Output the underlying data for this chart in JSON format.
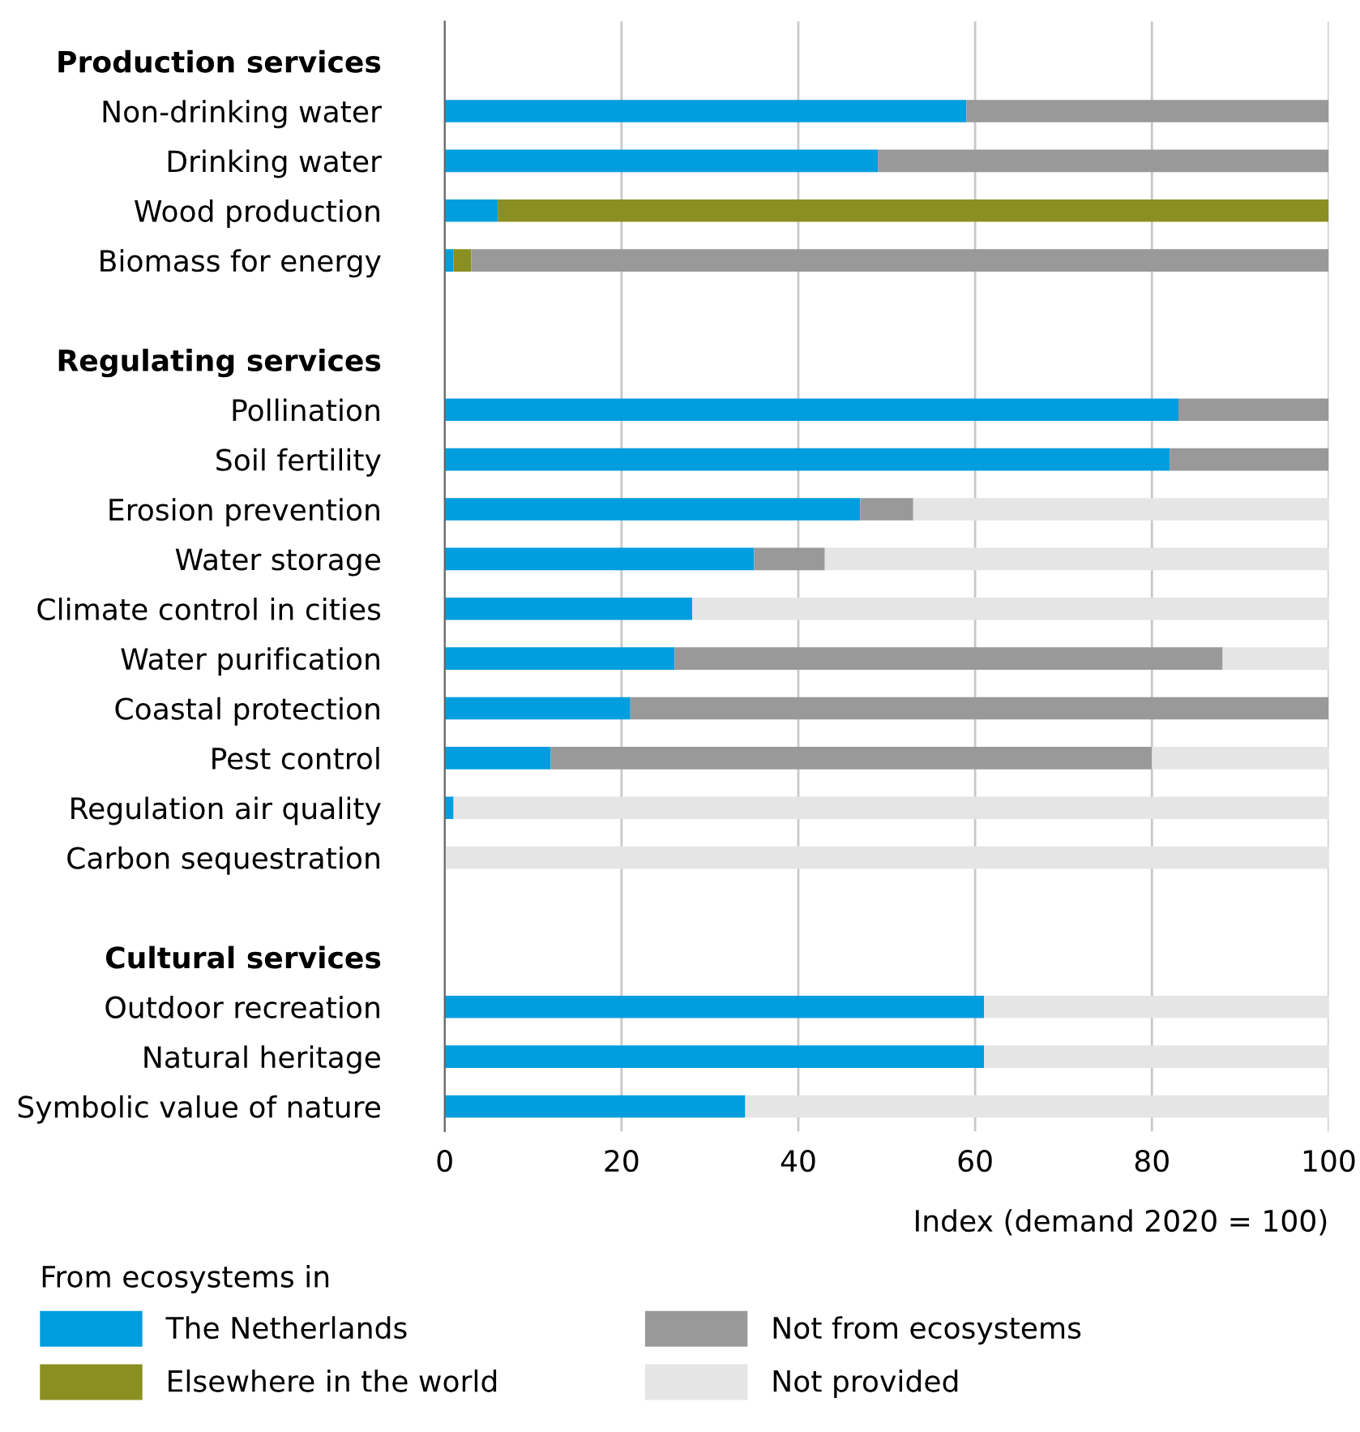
{
  "chart_data": {
    "type": "bar",
    "orientation": "horizontal",
    "stacked": true,
    "categories": [
      "Production services",
      "Non-drinking water",
      "Drinking water",
      "Wood production",
      "Biomass for energy",
      null,
      "Regulating services",
      "Pollination",
      "Soil fertility",
      "Erosion prevention",
      "Water storage",
      "Climate control in cities",
      "Water purification",
      "Coastal protection",
      "Pest control",
      "Regulation air quality",
      "Carbon sequestration",
      null,
      "Cultural services",
      "Outdoor recreation",
      "Natural heritage",
      "Symbolic value of nature"
    ],
    "series": [
      {
        "name": "The Netherlands",
        "color": "#009ddf",
        "values": [
          null,
          59,
          49,
          6,
          1,
          null,
          null,
          83,
          82,
          47,
          35,
          28,
          26,
          21,
          12,
          1,
          0,
          null,
          null,
          61,
          61,
          34
        ]
      },
      {
        "name": "Elsewhere in the world",
        "color": "#8a8f21",
        "values": [
          null,
          0,
          0,
          94,
          2,
          null,
          null,
          0,
          0,
          0,
          0,
          0,
          0,
          0,
          0,
          0,
          0,
          null,
          null,
          0,
          0,
          0
        ]
      },
      {
        "name": "Not from ecosystems",
        "color": "#999999",
        "values": [
          null,
          41,
          51,
          0,
          97,
          null,
          null,
          17,
          18,
          6,
          8,
          0,
          62,
          79,
          68,
          0,
          0,
          null,
          null,
          0,
          0,
          0
        ]
      },
      {
        "name": "Not provided",
        "color": "#e5e5e5",
        "values": [
          null,
          0,
          0,
          0,
          0,
          null,
          null,
          0,
          0,
          47,
          57,
          72,
          12,
          0,
          20,
          99,
          100,
          null,
          null,
          39,
          39,
          66
        ]
      }
    ],
    "xlim": [
      0,
      100
    ],
    "xticks": [
      0,
      20,
      40,
      60,
      80,
      100
    ],
    "xlabel": "Index (demand 2020 = 100)",
    "legend_title": "From ecosystems in",
    "legend": "bottom",
    "grid": "x"
  }
}
